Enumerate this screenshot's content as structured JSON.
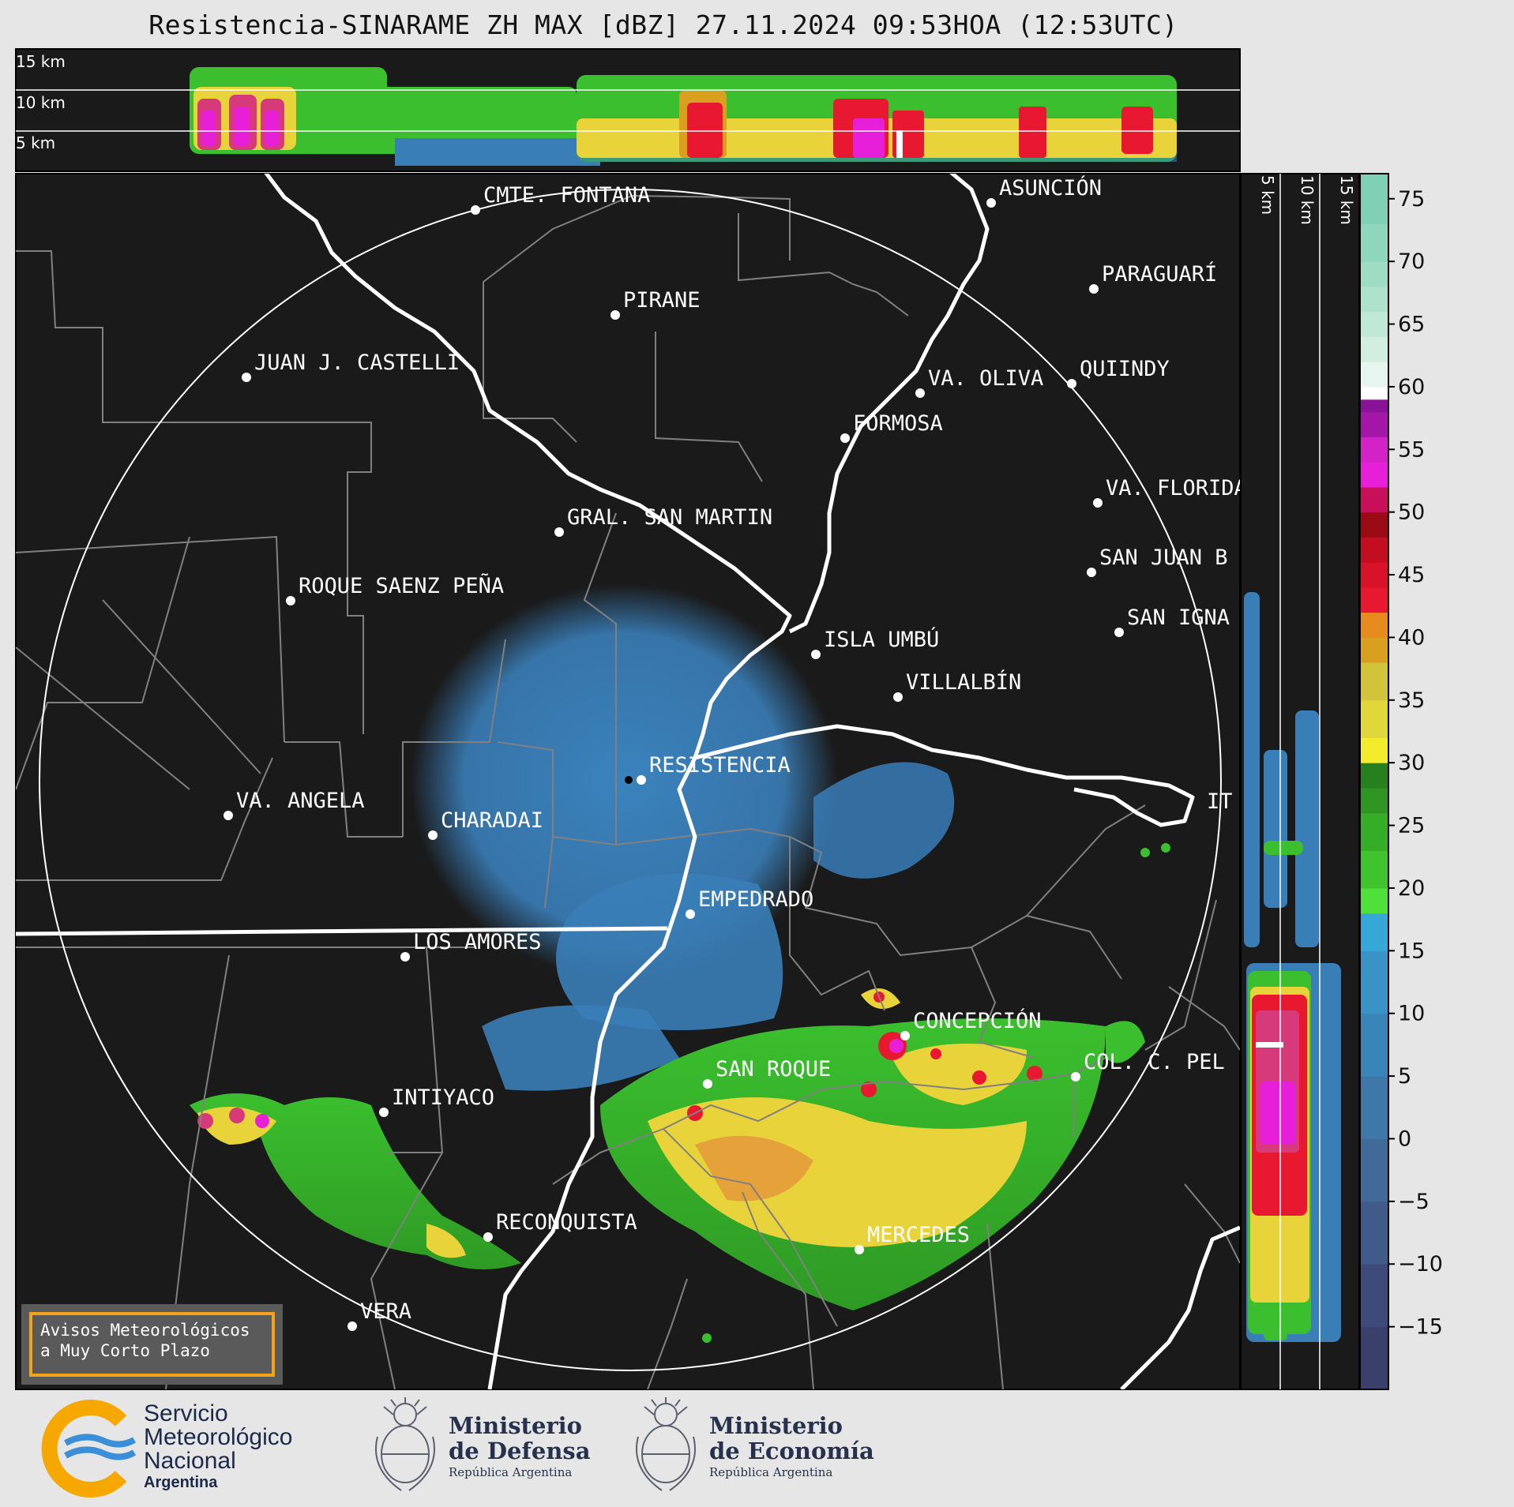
{
  "title": "Resistencia-SINARAME ZH MAX [dBZ] 27.11.2024 09:53HOA (12:53UTC)",
  "top_profile_labels": [
    "15 km",
    "10 km",
    "5 km"
  ],
  "side_profile_labels": [
    "5 km",
    "10 km",
    "15 km"
  ],
  "colorbar_ticks": [
    "75",
    "70",
    "65",
    "60",
    "55",
    "50",
    "45",
    "40",
    "35",
    "30",
    "25",
    "20",
    "15",
    "10",
    "5",
    "0",
    "−5",
    "−10",
    "−15"
  ],
  "cities": [
    {
      "id": "cmte-fontana",
      "name": "CMTE. FONTANA"
    },
    {
      "id": "asuncion",
      "name": "ASUNCIÓN"
    },
    {
      "id": "paraguari",
      "name": "PARAGUARÍ"
    },
    {
      "id": "pirane",
      "name": "PIRANE"
    },
    {
      "id": "juan-castelli",
      "name": "JUAN J. CASTELLI"
    },
    {
      "id": "va-oliva",
      "name": "VA. OLIVA"
    },
    {
      "id": "quiindy",
      "name": "QUIINDY"
    },
    {
      "id": "formosa",
      "name": "FORMOSA"
    },
    {
      "id": "va-florida",
      "name": "VA. FLORIDA"
    },
    {
      "id": "gral-san-martin",
      "name": "GRAL. SAN MARTIN"
    },
    {
      "id": "san-juan-b",
      "name": "SAN JUAN B"
    },
    {
      "id": "roque-saenz-pena",
      "name": "ROQUE SAENZ PEÑA"
    },
    {
      "id": "san-ignacio",
      "name": "SAN IGNA"
    },
    {
      "id": "isla-umbu",
      "name": "ISLA UMBÚ"
    },
    {
      "id": "villalbin",
      "name": "VILLALBÍN"
    },
    {
      "id": "resistencia",
      "name": "RESISTENCIA"
    },
    {
      "id": "va-angela",
      "name": "VA. ANGELA"
    },
    {
      "id": "charadai",
      "name": "CHARADAI"
    },
    {
      "id": "ita",
      "name": "IT"
    },
    {
      "id": "empedrado",
      "name": "EMPEDRADO"
    },
    {
      "id": "los-amores",
      "name": "LOS AMORES"
    },
    {
      "id": "concepcion",
      "name": "CONCEPCIÓN"
    },
    {
      "id": "san-roque",
      "name": "SAN ROQUE"
    },
    {
      "id": "col-c-pel",
      "name": "COL. C. PEL"
    },
    {
      "id": "intiyaco",
      "name": "INTIYACO"
    },
    {
      "id": "reconquista",
      "name": "RECONQUISTA"
    },
    {
      "id": "mercedes",
      "name": "MERCEDES"
    },
    {
      "id": "vera",
      "name": "VERA"
    }
  ],
  "warning_box": {
    "line1": "Avisos Meteorológicos",
    "line2": "a Muy Corto Plazo"
  },
  "logos": {
    "smn": {
      "line1": "Servicio",
      "line2": "Meteorológico",
      "line3": "Nacional",
      "line4": "Argentina"
    },
    "defensa": {
      "line1": "Ministerio",
      "line2": "de Defensa",
      "line3": "República Argentina"
    },
    "economia": {
      "line1": "Ministerio",
      "line2": "de Economía",
      "line3": "República Argentina"
    }
  },
  "colors": {
    "background": "#1a1a1a",
    "page": "#e6e6e6",
    "river": "#ffffff",
    "borders": "#808080",
    "warning_border": "#f2a31b",
    "smn_orange": "#f7a800",
    "smn_blue": "#3a8fd6"
  }
}
